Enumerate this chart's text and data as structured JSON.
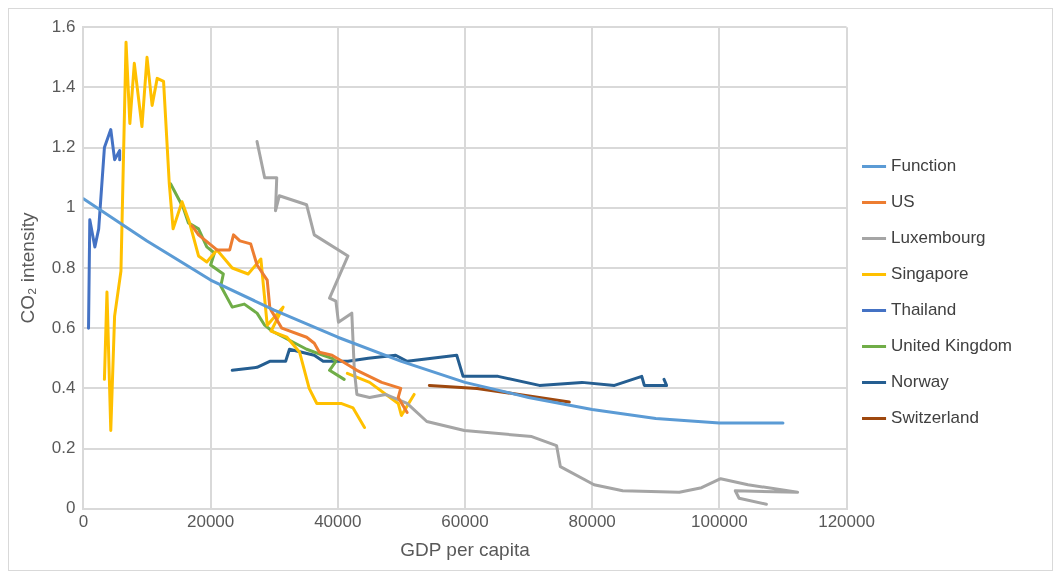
{
  "chart_data": {
    "type": "line",
    "xlabel": "GDP per capita",
    "ylabel": "CO₂ intensity",
    "xlim": [
      0,
      120000
    ],
    "xticks": [
      0,
      20000,
      40000,
      60000,
      80000,
      100000,
      120000
    ],
    "ylim": [
      0,
      1.6
    ],
    "yticks": [
      0,
      0.2,
      0.4,
      0.6,
      0.8,
      1,
      1.2,
      1.4,
      1.6
    ],
    "grid": true,
    "legend": "right",
    "marker": "none",
    "line_style": "solid",
    "series": [
      {
        "name": "Function",
        "color": "#5b9bd5",
        "x": [
          0,
          10000,
          20000,
          30000,
          40000,
          50000,
          60000,
          70000,
          80000,
          90000,
          100000,
          110000
        ],
        "values": [
          1.03,
          0.89,
          0.76,
          0.66,
          0.57,
          0.49,
          0.42,
          0.37,
          0.33,
          0.3,
          0.285,
          0.285
        ]
      },
      {
        "name": "US",
        "color": "#ed7d31",
        "x": [
          17100,
          18100,
          21000,
          23000,
          23600,
          24600,
          26300,
          27300,
          28900,
          29300,
          29500,
          31200,
          35100,
          36300,
          37100,
          39100,
          43000,
          46900,
          49900,
          49500,
          50900
        ],
        "values": [
          0.94,
          0.91,
          0.86,
          0.86,
          0.91,
          0.89,
          0.88,
          0.81,
          0.76,
          0.67,
          0.66,
          0.6,
          0.57,
          0.55,
          0.52,
          0.51,
          0.46,
          0.42,
          0.4,
          0.37,
          0.32
        ]
      },
      {
        "name": "Luxembourg",
        "color": "#a5a5a5",
        "x": [
          27300,
          28500,
          30400,
          30200,
          30800,
          35100,
          36300,
          41600,
          38700,
          39700,
          40100,
          42200,
          42600,
          43000,
          45000,
          47500,
          50900,
          54000,
          59900,
          70500,
          74400,
          75000,
          80300,
          84800,
          93700,
          97200,
          100200,
          104500,
          112300,
          102500,
          103100,
          107400
        ],
        "values": [
          1.22,
          1.1,
          1.1,
          0.99,
          1.04,
          1.01,
          0.91,
          0.84,
          0.7,
          0.69,
          0.62,
          0.65,
          0.46,
          0.38,
          0.37,
          0.38,
          0.35,
          0.29,
          0.26,
          0.24,
          0.21,
          0.14,
          0.08,
          0.06,
          0.055,
          0.07,
          0.1,
          0.08,
          0.055,
          0.06,
          0.035,
          0.015
        ]
      },
      {
        "name": "Singapore",
        "color": "#ffc000",
        "x": [
          3300,
          3700,
          4300,
          4900,
          5900,
          6700,
          7300,
          8000,
          9200,
          10000,
          10800,
          11600,
          12600,
          13500,
          14100,
          15500,
          16700,
          18100,
          19400,
          21000,
          23400,
          25900,
          27900,
          28900,
          31400,
          29500,
          32000,
          34000,
          35500,
          36700,
          40500,
          42400,
          44200,
          null,
          41500,
          45000,
          49500,
          50000,
          52000
        ],
        "values": [
          0.43,
          0.72,
          0.26,
          0.64,
          0.79,
          1.55,
          1.28,
          1.48,
          1.27,
          1.5,
          1.34,
          1.43,
          1.42,
          1.08,
          0.93,
          1.02,
          0.95,
          0.84,
          0.82,
          0.86,
          0.8,
          0.78,
          0.83,
          0.61,
          0.67,
          0.59,
          0.57,
          0.52,
          0.4,
          0.35,
          0.35,
          0.335,
          0.27,
          null,
          0.45,
          0.42,
          0.35,
          0.31,
          0.38
        ]
      },
      {
        "name": "Thailand",
        "color": "#4472c4",
        "x": [
          800,
          1000,
          1800,
          2400,
          3300,
          4300,
          4900,
          5700,
          5700
        ],
        "values": [
          0.6,
          0.96,
          0.87,
          0.93,
          1.2,
          1.26,
          1.16,
          1.19,
          1.16
        ]
      },
      {
        "name": "United Kingdom",
        "color": "#70ad47",
        "x": [
          13700,
          15700,
          16500,
          18100,
          19400,
          20600,
          20000,
          22000,
          21600,
          23400,
          25300,
          27300,
          28500,
          29700,
          32400,
          35100,
          37700,
          39100,
          39700,
          38700,
          41000
        ],
        "values": [
          1.08,
          1,
          0.95,
          0.93,
          0.87,
          0.85,
          0.81,
          0.78,
          0.74,
          0.67,
          0.68,
          0.65,
          0.61,
          0.59,
          0.56,
          0.53,
          0.51,
          0.5,
          0.49,
          0.46,
          0.43
        ]
      },
      {
        "name": "Norway",
        "color": "#255e91",
        "x": [
          23400,
          27300,
          29300,
          31800,
          32400,
          36300,
          37700,
          41600,
          44800,
          49100,
          50900,
          58700,
          59700,
          65200,
          71700,
          78400,
          83500,
          87800,
          88200,
          91700,
          91300
        ],
        "values": [
          0.46,
          0.47,
          0.49,
          0.49,
          0.53,
          0.51,
          0.49,
          0.49,
          0.5,
          0.51,
          0.49,
          0.51,
          0.44,
          0.44,
          0.41,
          0.42,
          0.41,
          0.44,
          0.41,
          0.41,
          0.43
        ]
      },
      {
        "name": "Switzerland",
        "color": "#9e480e",
        "x": [
          54400,
          61900,
          68500,
          76400
        ],
        "values": [
          0.41,
          0.4,
          0.38,
          0.355
        ]
      }
    ]
  }
}
